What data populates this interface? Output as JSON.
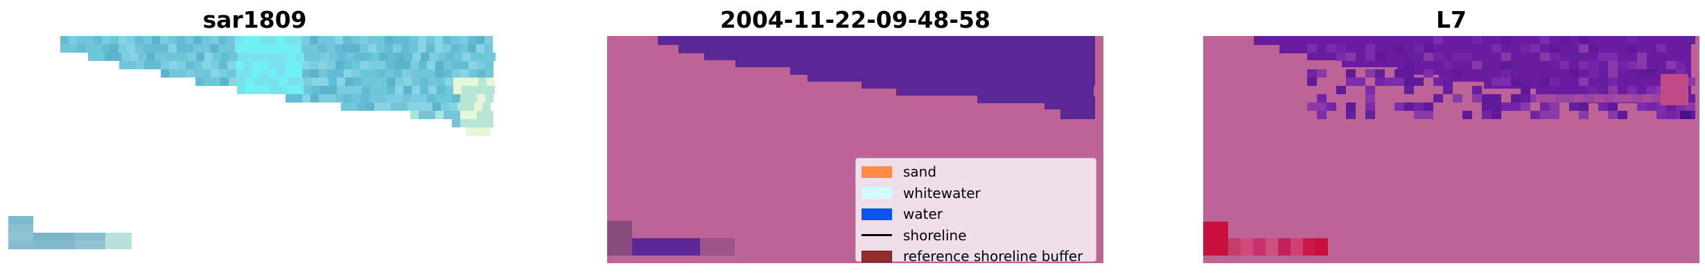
{
  "panels": [
    {
      "title": "sar1809"
    },
    {
      "title": "2004-11-22-09-48-58"
    },
    {
      "title": "L7"
    }
  ],
  "legend": {
    "items": [
      {
        "label": "sand",
        "color": "#ff8c46"
      },
      {
        "label": "whitewater",
        "color": "#d0fcfc"
      },
      {
        "label": "water",
        "color": "#0b55f0"
      },
      {
        "label": "shoreline",
        "color": "#000000",
        "kind": "line"
      },
      {
        "label": "reference shoreline buffer",
        "color": "#962d2d"
      }
    ]
  },
  "colors": {
    "land": "#bd6496",
    "water_class": "#5a2896",
    "water_prob": "#6a1ca0",
    "buffer_mark": "#c8103c",
    "imagery_blue": "#6cc8d8"
  }
}
